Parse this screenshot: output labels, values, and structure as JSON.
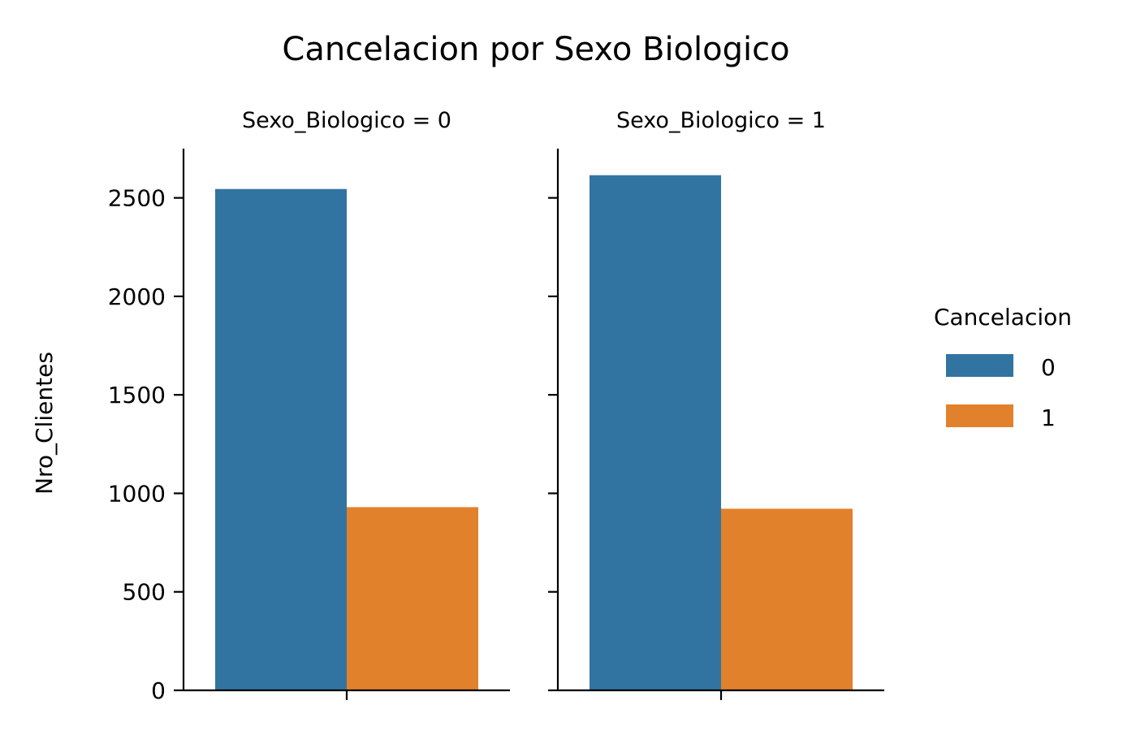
{
  "chart_data": {
    "type": "bar",
    "title": "Cancelacion por Sexo Biologico",
    "ylabel": "Nro_Clientes",
    "xlabel": "",
    "ylim": [
      0,
      2750
    ],
    "yticks": [
      0,
      500,
      1000,
      1500,
      2000,
      2500
    ],
    "facets": [
      {
        "label": "Sexo_Biologico = 0",
        "values": [
          2545,
          930
        ]
      },
      {
        "label": "Sexo_Biologico = 1",
        "values": [
          2615,
          922
        ]
      }
    ],
    "legend": {
      "title": "Cancelacion",
      "placement": "right",
      "entries": [
        {
          "label": "0",
          "color": "#3274a1"
        },
        {
          "label": "1",
          "color": "#e1812c"
        }
      ]
    },
    "grid": false
  }
}
